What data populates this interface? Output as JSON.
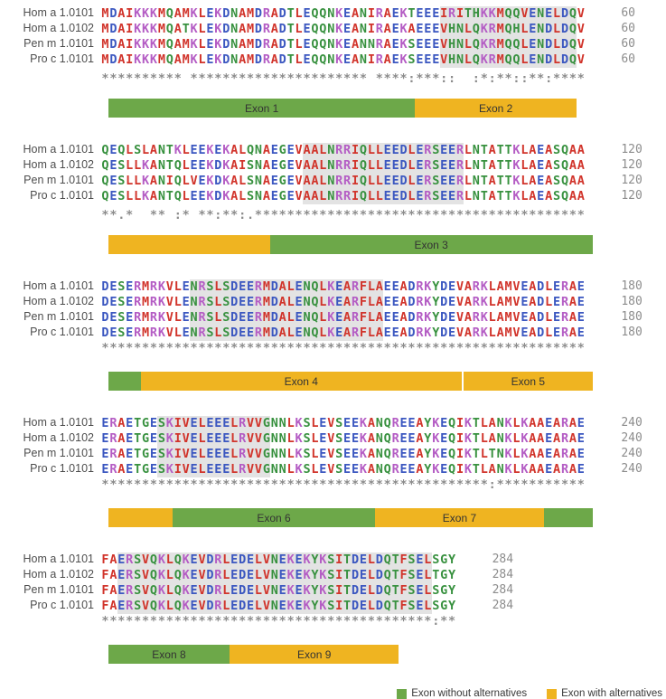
{
  "colors": {
    "residue_red": "#d1342b",
    "residue_blue": "#3b57c0",
    "residue_magenta": "#b45cc4",
    "residue_green": "#38913f",
    "conservation": "#8c8c8c",
    "highlight": "#e3e3e3",
    "exon_green": "#6da849",
    "exon_yellow": "#efb421"
  },
  "residue_groups": {
    "red": "AVFPMILW",
    "blue": "DE",
    "magenta": "RK",
    "green": "STYHCNGQ"
  },
  "blocks": [
    {
      "end_number": "60",
      "rows": [
        {
          "label": "Hom a 1.0101",
          "seq": "MDAIKKKMQAMKLEKDNAMDRADTLEQQNKEANIRAEKTEEEIRITHKKMQQVENELDQV"
        },
        {
          "label": "Hom a 1.0102",
          "seq": "MDAIKKKMQATKLEKDNAMDRADTLEQQNKEANIRAEKAEEEVHNLQKRMQHLENDLDQV"
        },
        {
          "label": "Pen m 1.0101",
          "seq": "MDAIKKKMQAMKLEKDNAMDRADTLEQQNKEANNRAEKSEEEVHNLQKRMQQLENDLDQV"
        },
        {
          "label": "Pro c 1.0101",
          "seq": "MDAIKKKMQAMKLEKDNAMDRADTLEQQNKEANIRAEKSEEEVHNLQKRMQQLENDLDQV"
        }
      ],
      "conservation": "********** ********************** ****:***::  :*:**::**:****",
      "highlight": {
        "start": 43,
        "end": 59
      },
      "exons": [
        {
          "label": "Exon 1",
          "color": "green",
          "start": 1,
          "end": 38
        },
        {
          "label": "Exon 2",
          "color": "yellow",
          "start": 39,
          "end": 58
        }
      ]
    },
    {
      "end_number": "120",
      "rows": [
        {
          "label": "Hom a 1.0101",
          "seq": "QEQLSLANTKLEEKEKALQNAEGEVAALNRRIQLLEEDLERSEERLNTATTKLAEASQAA"
        },
        {
          "label": "Hom a 1.0102",
          "seq": "QESLLKANTQLEEKDKAISNAEGEVAALNRRIQLLEEDLERSEERLNTATTKLAEASQAA"
        },
        {
          "label": "Pen m 1.0101",
          "seq": "QESLLKANIQLVEKDKALSNAEGEVAALNRRIQLLEEDLERSEERLNTATTKLAEASQAA"
        },
        {
          "label": "Pro c 1.0101",
          "seq": "QESLLKANTQLEEKDKALSNAEGEVAALNRRIQLLEEDLERSEERLNTATTKLAEASQAA"
        }
      ],
      "conservation": "**.*  ** :* **:**:.*****************************************",
      "highlight": {
        "start": 26,
        "end": 45
      },
      "exons": [
        {
          "label": "",
          "color": "yellow",
          "start": 1,
          "end": 20
        },
        {
          "label": "Exon 3",
          "color": "green",
          "start": 21,
          "end": 60
        }
      ]
    },
    {
      "end_number": "180",
      "rows": [
        {
          "label": "Hom a 1.0101",
          "seq": "DESERMRKVLENRSLSDEERMDALENQLKEARFLAEEADRKYDEVARKLAMVEADLERAE"
        },
        {
          "label": "Hom a 1.0102",
          "seq": "DESERMRKVLENRSLSDEERMDALENQLKEARFLAEEADRKYDEVARKLAMVEADLERAE"
        },
        {
          "label": "Pen m 1.0101",
          "seq": "DESERMRKVLENRSLSDEERMDALENQLKEARFLAEEADRKYDEVARKLAMVEADLERAE"
        },
        {
          "label": "Pro c 1.0101",
          "seq": "DESERMRKVLENRSLSDEERMDALENQLKEARFLAEEADRKYDEVARKLAMVEADLERAE"
        }
      ],
      "conservation": "************************************************************",
      "highlight": {
        "start": 12,
        "end": 35
      },
      "exons": [
        {
          "label": "",
          "color": "green",
          "start": 1,
          "end": 4
        },
        {
          "label": "Exon 4",
          "color": "yellow",
          "start": 5,
          "end": 44,
          "divider_after": true
        },
        {
          "label": "Exon 5",
          "color": "yellow",
          "start": 45,
          "end": 60
        }
      ]
    },
    {
      "end_number": "240",
      "rows": [
        {
          "label": "Hom a 1.0101",
          "seq": "ERAETGESKIVELEEELRVVGNNLKSLEVSEEKANQREEAYKEQIKTLANKLKAAEARAE"
        },
        {
          "label": "Hom a 1.0102",
          "seq": "ERAETGESKIVELEEELRVVGNNLKSLEVSEEKANQREEAYKEQIKTLANKLKAAEARAE"
        },
        {
          "label": "Pen m 1.0101",
          "seq": "ERAETGESKIVELEEELRVVGNNLKSLEVSEEKANQREEAYKEQIKTLTNKLKAAEARAE"
        },
        {
          "label": "Pro c 1.0101",
          "seq": "ERAETGESKIVELEEELRVVGNNLKSLEVSEEKANQREEAYKEQIKTLANKLKAAEARAE"
        }
      ],
      "conservation": "************************************************:***********",
      "highlight": {
        "start": 8,
        "end": 21
      },
      "exons": [
        {
          "label": "",
          "color": "yellow",
          "start": 1,
          "end": 8
        },
        {
          "label": "Exon 6",
          "color": "green",
          "start": 9,
          "end": 33
        },
        {
          "label": "Exon 7",
          "color": "yellow",
          "start": 34,
          "end": 54
        },
        {
          "label": "",
          "color": "green",
          "start": 55,
          "end": 60
        }
      ]
    },
    {
      "end_number": "284",
      "rows": [
        {
          "label": "Hom a 1.0101",
          "seq": "FAERSVQKLQKEVDRLEDELVNEKEKYKSITDELDQTFSELSGY"
        },
        {
          "label": "Hom a 1.0102",
          "seq": "FAERSVQKLQKEVDRLEDELVNEKEKYKSITDELDQTFSELTGY"
        },
        {
          "label": "Pen m 1.0101",
          "seq": "FAERSVQKLQKEVDRLEDELVNEKEKYKSITDELDQTFSELSGY"
        },
        {
          "label": "Pro c 1.0101",
          "seq": "FAERSVQKLQKEVDRLEDELVNEKEKYKSITDELDQTFSELSGY"
        }
      ],
      "conservation": "*****************************************:**",
      "highlight": {
        "start": 3,
        "end": 41
      },
      "exons": [
        {
          "label": "Exon 8",
          "color": "green",
          "start": 1,
          "end": 15
        },
        {
          "label": "Exon 9",
          "color": "yellow",
          "start": 16,
          "end": 36
        }
      ]
    }
  ],
  "legend": [
    {
      "label": "Exon without alternatives",
      "color": "green"
    },
    {
      "label": "Exon with alternatives",
      "color": "yellow"
    }
  ]
}
